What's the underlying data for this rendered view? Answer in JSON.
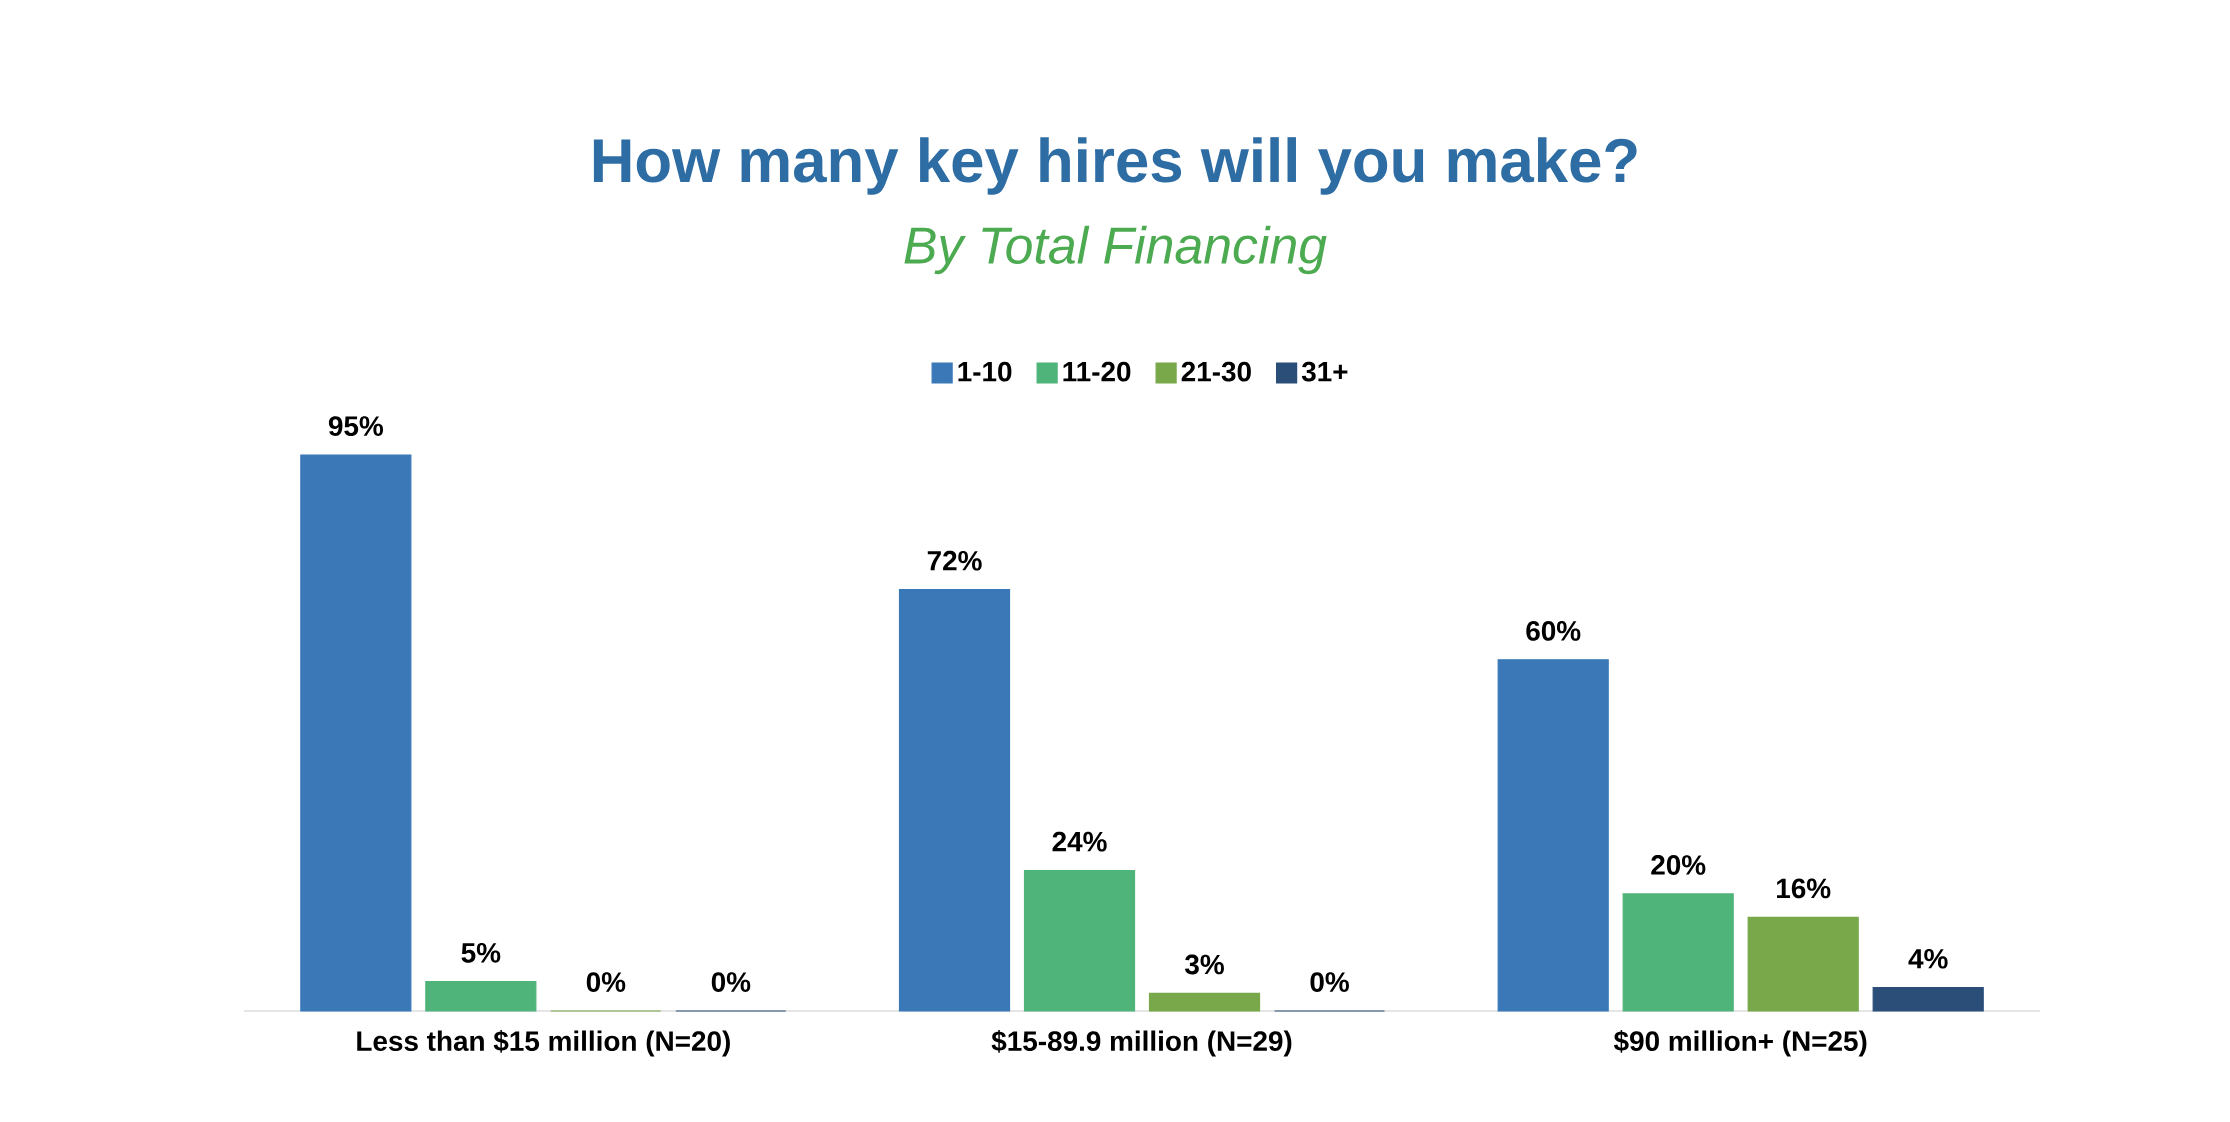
{
  "chart_data": {
    "type": "bar",
    "title": "How many key hires will you make?",
    "subtitle": "By Total Financing",
    "categories": [
      "Less than $15 million (N=20)",
      "$15-89.9 million (N=29)",
      "$90 million+ (N=25)"
    ],
    "legend": "top",
    "series": [
      {
        "name": "1-10",
        "color": "#3a78b8",
        "values": [
          95,
          72,
          60
        ],
        "value_labels": [
          "95%",
          "72%",
          "60%"
        ]
      },
      {
        "name": "11-20",
        "color": "#4fb47a",
        "values": [
          5,
          24,
          20
        ],
        "value_labels": [
          "5%",
          "24%",
          "20%"
        ]
      },
      {
        "name": "21-30",
        "color": "#78a84a",
        "values": [
          0,
          3,
          16
        ],
        "value_labels": [
          "0%",
          "3%",
          "16%"
        ]
      },
      {
        "name": "31+",
        "color": "#2a4e78",
        "values": [
          0,
          0,
          4
        ],
        "value_labels": [
          "0%",
          "0%",
          "4%"
        ]
      }
    ]
  }
}
